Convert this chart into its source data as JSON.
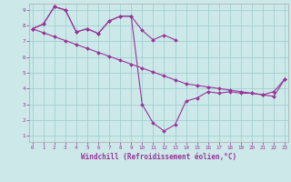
{
  "xlabel": "Windchill (Refroidissement éolien,°C)",
  "x": [
    0,
    1,
    2,
    3,
    4,
    5,
    6,
    7,
    8,
    9,
    10,
    11,
    12,
    13,
    14,
    15,
    16,
    17,
    18,
    19,
    20,
    21,
    22,
    23
  ],
  "line_wavy": [
    7.8,
    8.1,
    9.2,
    9.0,
    7.6,
    7.8,
    7.5,
    8.3,
    8.6,
    8.6,
    3.0,
    1.8,
    1.3,
    1.7,
    3.2,
    3.4,
    3.8,
    3.7,
    3.8,
    3.7,
    3.7,
    3.6,
    3.8,
    4.6
  ],
  "line_diag": [
    7.8,
    7.55,
    7.3,
    7.05,
    6.8,
    6.55,
    6.3,
    6.05,
    5.8,
    5.55,
    5.3,
    5.05,
    4.8,
    4.55,
    4.3,
    4.2,
    4.1,
    4.0,
    3.9,
    3.8,
    3.7,
    3.6,
    3.5,
    4.6
  ],
  "line_upper": [
    7.8,
    8.1,
    9.2,
    9.0,
    7.6,
    7.8,
    7.5,
    8.3,
    8.6,
    8.6,
    7.7,
    7.1,
    7.4,
    7.1
  ],
  "line_color": "#993399",
  "background_color": "#cce8e8",
  "grid_color": "#99cccc",
  "yticks": [
    1,
    2,
    3,
    4,
    5,
    6,
    7,
    8,
    9
  ],
  "xticks": [
    0,
    1,
    2,
    3,
    4,
    5,
    6,
    7,
    8,
    9,
    10,
    11,
    12,
    13,
    14,
    15,
    16,
    17,
    18,
    19,
    20,
    21,
    22,
    23
  ]
}
